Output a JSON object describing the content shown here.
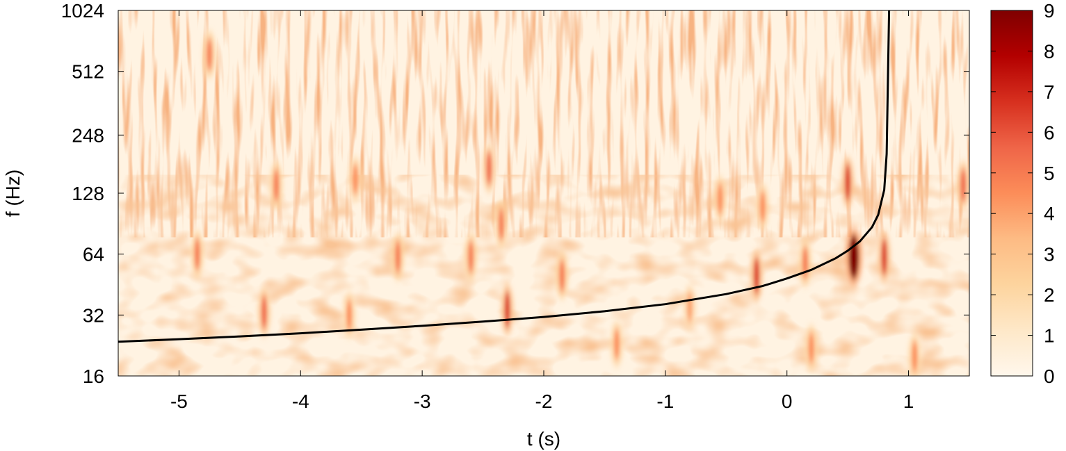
{
  "chart_data": {
    "type": "heatmap",
    "title": "",
    "xlabel": "t (s)",
    "ylabel": "f (Hz)",
    "xlim": [
      -5.5,
      1.5
    ],
    "ylim": [
      16,
      1024
    ],
    "y_scale": "log2",
    "x_ticks": [
      -5,
      -4,
      -3,
      -2,
      -1,
      0,
      1
    ],
    "x_tick_labels": [
      "-5",
      "-4",
      "-3",
      "-2",
      "-1",
      "0",
      "1"
    ],
    "y_ticks": [
      16,
      32,
      64,
      128,
      248,
      512,
      1024
    ],
    "y_tick_labels": [
      "16",
      "32",
      "64",
      "128",
      "248",
      "512",
      "1024"
    ],
    "colorbar": {
      "range": [
        0,
        9
      ],
      "ticks": [
        0,
        1,
        2,
        3,
        4,
        5,
        6,
        7,
        8,
        9
      ],
      "tick_labels": [
        "0",
        "1",
        "2",
        "3",
        "4",
        "5",
        "6",
        "7",
        "8",
        "9"
      ],
      "colormap": [
        "#fff7ec",
        "#fee8c8",
        "#fdd49e",
        "#fdbb84",
        "#fc8d59",
        "#ef6548",
        "#d7301f",
        "#b30000",
        "#7f0000"
      ]
    },
    "grid": false,
    "series": [
      {
        "type": "line",
        "color": "#000000",
        "x": [
          -5.5,
          -5.0,
          -4.5,
          -4.0,
          -3.5,
          -3.0,
          -2.5,
          -2.0,
          -1.5,
          -1.0,
          -0.5,
          -0.2,
          0.0,
          0.2,
          0.4,
          0.5,
          0.6,
          0.7,
          0.75,
          0.8,
          0.82,
          0.84
        ],
        "y": [
          23.6,
          24.3,
          25.1,
          26.0,
          27.1,
          28.3,
          29.7,
          31.3,
          33.4,
          36.2,
          40.6,
          44.5,
          48.5,
          53.5,
          61.0,
          66.5,
          74.0,
          87.0,
          100.0,
          133.0,
          200.0,
          1024.0
        ]
      }
    ],
    "hotspots": [
      {
        "t": -4.85,
        "f": 64,
        "value": 5
      },
      {
        "t": -4.3,
        "f": 33,
        "value": 5.5
      },
      {
        "t": -4.2,
        "f": 140,
        "value": 5
      },
      {
        "t": -3.6,
        "f": 32,
        "value": 4.5
      },
      {
        "t": -3.55,
        "f": 150,
        "value": 4.5
      },
      {
        "t": -3.2,
        "f": 62,
        "value": 5
      },
      {
        "t": -2.6,
        "f": 62,
        "value": 5
      },
      {
        "t": -2.3,
        "f": 34,
        "value": 6.5
      },
      {
        "t": -2.45,
        "f": 170,
        "value": 5.5
      },
      {
        "t": -2.35,
        "f": 90,
        "value": 5
      },
      {
        "t": -1.85,
        "f": 50,
        "value": 5
      },
      {
        "t": -1.4,
        "f": 23,
        "value": 4.5
      },
      {
        "t": -0.8,
        "f": 35,
        "value": 4
      },
      {
        "t": -0.55,
        "f": 120,
        "value": 4.5
      },
      {
        "t": -0.25,
        "f": 50,
        "value": 6.5
      },
      {
        "t": -0.2,
        "f": 110,
        "value": 4.5
      },
      {
        "t": 0.15,
        "f": 58,
        "value": 5
      },
      {
        "t": 0.2,
        "f": 22,
        "value": 4.5
      },
      {
        "t": 0.55,
        "f": 62,
        "value": 9
      },
      {
        "t": 0.5,
        "f": 145,
        "value": 6.5
      },
      {
        "t": 0.8,
        "f": 62,
        "value": 6.5
      },
      {
        "t": 1.05,
        "f": 20,
        "value": 4.5
      },
      {
        "t": 1.45,
        "f": 140,
        "value": 5.5
      },
      {
        "t": -4.75,
        "f": 620,
        "value": 5
      }
    ]
  }
}
